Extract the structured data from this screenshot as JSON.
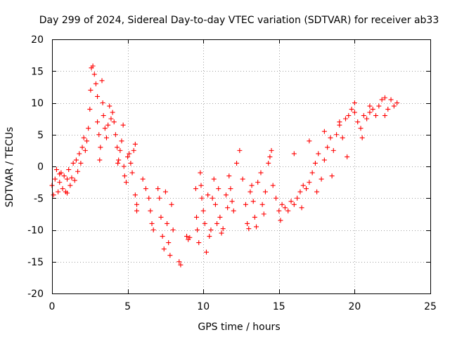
{
  "chart_data": {
    "type": "scatter",
    "title": "Day 299 of 2024, Sidereal Day-to-day VTEC variation (SDTVAR) for receiver ab33",
    "xlabel": "GPS time / hours",
    "ylabel": "SDTVAR / TECUs",
    "xlim": [
      0,
      25
    ],
    "ylim": [
      -20,
      20
    ],
    "x_ticks": [
      "0",
      "5",
      "10",
      "15",
      "20",
      "25"
    ],
    "y_ticks": [
      "-20",
      "-15",
      "-10",
      "-5",
      "0",
      "5",
      "10",
      "15",
      "20"
    ],
    "grid": true,
    "marker": "plus",
    "colors": {
      "series": "#ff0000",
      "grid": "#a0a0a0",
      "frame": "#000000"
    },
    "series": [
      {
        "values": [
          [
            0.0,
            -3.0
          ],
          [
            0.1,
            -4.5
          ],
          [
            0.2,
            -2.0
          ],
          [
            0.3,
            -0.5
          ],
          [
            0.4,
            -4.0
          ],
          [
            0.5,
            -2.5
          ],
          [
            0.6,
            -1.0
          ],
          [
            0.7,
            -3.5
          ],
          [
            0.8,
            -1.5
          ],
          [
            0.9,
            -4.0
          ],
          [
            1.0,
            -2.0
          ],
          [
            1.1,
            -0.5
          ],
          [
            1.2,
            -3.0
          ],
          [
            1.3,
            -1.8
          ],
          [
            1.4,
            0.5
          ],
          [
            1.5,
            -2.2
          ],
          [
            1.6,
            1.0
          ],
          [
            1.7,
            -0.8
          ],
          [
            1.8,
            2.0
          ],
          [
            1.9,
            0.5
          ],
          [
            2.0,
            3.0
          ],
          [
            2.1,
            4.5
          ],
          [
            2.2,
            2.5
          ],
          [
            2.3,
            4.0
          ],
          [
            2.4,
            6.0
          ],
          [
            2.5,
            9.0
          ],
          [
            2.55,
            12.0
          ],
          [
            2.6,
            15.5
          ],
          [
            2.7,
            15.8
          ],
          [
            2.8,
            14.5
          ],
          [
            2.9,
            13.0
          ],
          [
            3.0,
            11.0
          ],
          [
            3.0,
            7.0
          ],
          [
            3.1,
            5.0
          ],
          [
            3.15,
            1.0
          ],
          [
            3.2,
            3.0
          ],
          [
            3.3,
            13.5
          ],
          [
            3.35,
            10.0
          ],
          [
            3.4,
            8.0
          ],
          [
            3.5,
            6.0
          ],
          [
            3.6,
            4.5
          ],
          [
            3.7,
            6.5
          ],
          [
            3.8,
            9.5
          ],
          [
            3.9,
            7.5
          ],
          [
            4.0,
            8.5
          ],
          [
            4.1,
            7.0
          ],
          [
            4.2,
            5.0
          ],
          [
            4.3,
            3.0
          ],
          [
            4.35,
            0.5
          ],
          [
            4.4,
            1.0
          ],
          [
            4.5,
            2.5
          ],
          [
            4.6,
            4.0
          ],
          [
            4.7,
            6.5
          ],
          [
            4.75,
            0.0
          ],
          [
            4.8,
            -1.5
          ],
          [
            4.9,
            -2.5
          ],
          [
            5.0,
            1.5
          ],
          [
            5.1,
            2.0
          ],
          [
            5.2,
            0.5
          ],
          [
            5.3,
            -1.0
          ],
          [
            5.4,
            2.5
          ],
          [
            5.5,
            3.5
          ],
          [
            5.5,
            -4.5
          ],
          [
            5.6,
            -6.0
          ],
          [
            5.6,
            -7.0
          ],
          [
            6.0,
            -2.0
          ],
          [
            6.2,
            -3.5
          ],
          [
            6.4,
            -5.0
          ],
          [
            6.5,
            -7.0
          ],
          [
            6.6,
            -9.0
          ],
          [
            6.7,
            -10.0
          ],
          [
            7.0,
            -3.5
          ],
          [
            7.1,
            -5.0
          ],
          [
            7.2,
            -8.0
          ],
          [
            7.3,
            -11.0
          ],
          [
            7.4,
            -13.0
          ],
          [
            7.5,
            -4.0
          ],
          [
            7.6,
            -9.0
          ],
          [
            7.7,
            -12.0
          ],
          [
            7.8,
            -14.0
          ],
          [
            7.9,
            -6.0
          ],
          [
            8.0,
            -10.0
          ],
          [
            8.4,
            -15.0
          ],
          [
            8.5,
            -15.5
          ],
          [
            8.9,
            -11.0
          ],
          [
            9.0,
            -11.5
          ],
          [
            9.1,
            -11.2
          ],
          [
            9.5,
            -3.5
          ],
          [
            9.55,
            -8.0
          ],
          [
            9.6,
            -10.0
          ],
          [
            9.7,
            -12.0
          ],
          [
            9.8,
            -1.0
          ],
          [
            9.85,
            -3.0
          ],
          [
            9.9,
            -5.0
          ],
          [
            10.0,
            -7.0
          ],
          [
            10.1,
            -9.0
          ],
          [
            10.2,
            -13.5
          ],
          [
            10.3,
            -4.5
          ],
          [
            10.4,
            -11.0
          ],
          [
            10.5,
            -10.0
          ],
          [
            10.6,
            -5.0
          ],
          [
            10.7,
            -2.0
          ],
          [
            10.8,
            -6.0
          ],
          [
            10.9,
            -9.0
          ],
          [
            11.0,
            -3.5
          ],
          [
            11.1,
            -8.0
          ],
          [
            11.2,
            -10.5
          ],
          [
            11.3,
            -9.8
          ],
          [
            11.5,
            -4.5
          ],
          [
            11.6,
            -6.5
          ],
          [
            11.7,
            -1.5
          ],
          [
            11.8,
            -3.5
          ],
          [
            11.9,
            -5.5
          ],
          [
            12.0,
            -7.0
          ],
          [
            12.2,
            0.5
          ],
          [
            12.4,
            2.5
          ],
          [
            12.6,
            -2.0
          ],
          [
            12.8,
            -6.0
          ],
          [
            12.9,
            -9.0
          ],
          [
            13.0,
            -9.8
          ],
          [
            13.1,
            -4.0
          ],
          [
            13.2,
            -3.0
          ],
          [
            13.3,
            -5.5
          ],
          [
            13.4,
            -8.0
          ],
          [
            13.5,
            -9.5
          ],
          [
            13.6,
            -2.5
          ],
          [
            13.8,
            -1.0
          ],
          [
            13.9,
            -6.0
          ],
          [
            14.0,
            -7.5
          ],
          [
            14.1,
            -4.0
          ],
          [
            14.3,
            0.5
          ],
          [
            14.4,
            1.5
          ],
          [
            14.5,
            2.5
          ],
          [
            14.6,
            -3.0
          ],
          [
            14.8,
            -5.0
          ],
          [
            15.0,
            -7.0
          ],
          [
            15.1,
            -8.5
          ],
          [
            15.2,
            -6.0
          ],
          [
            15.4,
            -6.5
          ],
          [
            15.6,
            -7.0
          ],
          [
            15.8,
            -5.5
          ],
          [
            16.0,
            -6.0
          ],
          [
            16.2,
            -5.0
          ],
          [
            16.4,
            -4.0
          ],
          [
            16.6,
            -3.0
          ],
          [
            16.8,
            -3.5
          ],
          [
            17.0,
            -2.5
          ],
          [
            17.2,
            -1.0
          ],
          [
            17.4,
            0.5
          ],
          [
            17.6,
            2.0
          ],
          [
            17.8,
            -2.0
          ],
          [
            18.0,
            1.0
          ],
          [
            18.2,
            3.0
          ],
          [
            18.4,
            4.5
          ],
          [
            18.6,
            2.5
          ],
          [
            18.8,
            5.0
          ],
          [
            19.0,
            6.5
          ],
          [
            19.2,
            4.5
          ],
          [
            19.4,
            7.5
          ],
          [
            19.6,
            8.0
          ],
          [
            19.8,
            9.0
          ],
          [
            20.0,
            10.0
          ],
          [
            20.2,
            7.0
          ],
          [
            20.4,
            6.0
          ],
          [
            20.6,
            8.0
          ],
          [
            20.8,
            7.5
          ],
          [
            21.0,
            8.5
          ],
          [
            21.2,
            9.0
          ],
          [
            21.4,
            8.0
          ],
          [
            21.6,
            9.5
          ],
          [
            21.8,
            10.5
          ],
          [
            22.0,
            8.0
          ],
          [
            22.2,
            9.0
          ],
          [
            22.4,
            10.5
          ],
          [
            22.6,
            9.5
          ],
          [
            22.8,
            10.0
          ],
          [
            16.0,
            2.0
          ],
          [
            17.0,
            4.0
          ],
          [
            18.0,
            5.5
          ],
          [
            19.0,
            7.0
          ],
          [
            20.0,
            8.5
          ],
          [
            21.0,
            9.5
          ],
          [
            22.0,
            10.8
          ],
          [
            16.5,
            -6.5
          ],
          [
            17.5,
            -4.0
          ],
          [
            18.5,
            -1.5
          ],
          [
            19.5,
            1.5
          ],
          [
            20.5,
            4.5
          ],
          [
            1.0,
            -4.2
          ],
          [
            0.5,
            -1.2
          ]
        ]
      }
    ]
  }
}
